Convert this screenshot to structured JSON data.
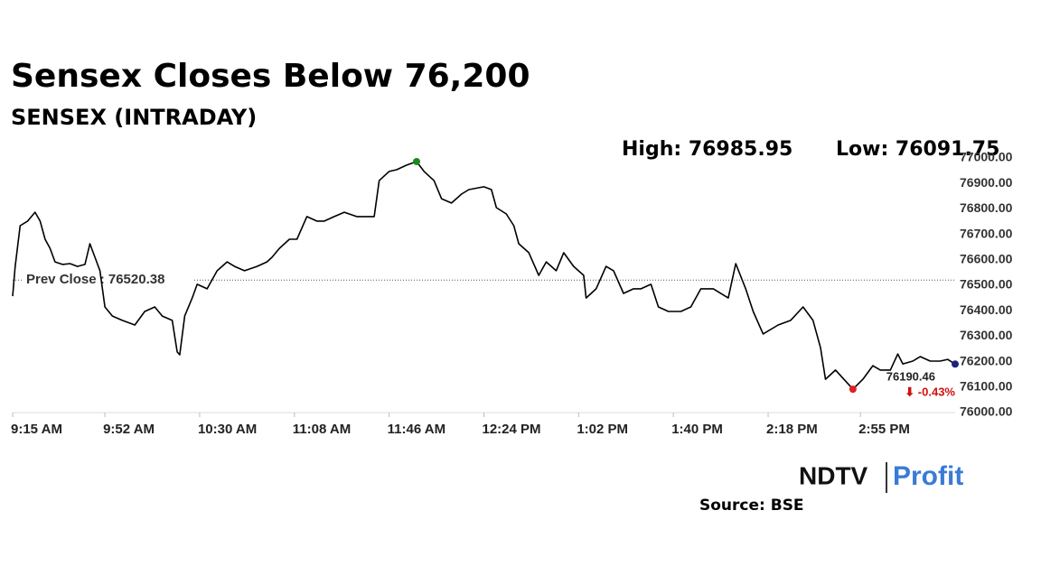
{
  "chart_data": {
    "type": "line",
    "title": "Sensex Closes Below 76,200",
    "subtitle": "SENSEX (INTRADAY)",
    "high_label": "High: 76985.95",
    "low_label": "Low: 76091.75",
    "reference_line": {
      "value": 76520.38,
      "label": "Prev Close : 76520.38"
    },
    "last_label": "76190.46",
    "change_label": "⬇ -0.43%",
    "source": "Source: BSE",
    "brand": [
      "NDTV",
      "Profit"
    ],
    "color": "#000000",
    "x": [
      0,
      1,
      3,
      6,
      9,
      11,
      13,
      15,
      17,
      20,
      23,
      26,
      29,
      31,
      33,
      35,
      37,
      40,
      44,
      49,
      53,
      57,
      60,
      64,
      66,
      67,
      69,
      72,
      74,
      78,
      82,
      86,
      89,
      93,
      98,
      102,
      104,
      107,
      111,
      114,
      118,
      122,
      125,
      129,
      133,
      138,
      142,
      145,
      147,
      151,
      154,
      158,
      162,
      165,
      169,
      172,
      176,
      180,
      183,
      189,
      192,
      194,
      198,
      201,
      203,
      207,
      211,
      214,
      218,
      221,
      225,
      229,
      230,
      234,
      238,
      241,
      245,
      249,
      252,
      256,
      259,
      263,
      268,
      272,
      276,
      281,
      287,
      290,
      294,
      297,
      301,
      307,
      312,
      317,
      321,
      324,
      326,
      330,
      337,
      341,
      345,
      348,
      352,
      355,
      357,
      361,
      364,
      368,
      372,
      375,
      378
    ],
    "values": [
      76457,
      76574,
      76734,
      76752,
      76787,
      76752,
      76681,
      76645,
      76592,
      76582,
      76585,
      76574,
      76582,
      76663,
      76610,
      76557,
      76415,
      76379,
      76362,
      76344,
      76397,
      76415,
      76379,
      76362,
      76238,
      76227,
      76379,
      76450,
      76504,
      76486,
      76557,
      76592,
      76574,
      76557,
      76574,
      76592,
      76610,
      76645,
      76681,
      76681,
      76770,
      76752,
      76752,
      76770,
      76787,
      76770,
      76770,
      76770,
      76911,
      76947,
      76954,
      76972,
      76985.95,
      76947,
      76911,
      76840,
      76823,
      76858,
      76876,
      76887,
      76876,
      76805,
      76780,
      76734,
      76663,
      76628,
      76539,
      76592,
      76557,
      76628,
      76574,
      76539,
      76450,
      76486,
      76574,
      76557,
      76468,
      76486,
      76486,
      76504,
      76415,
      76397,
      76397,
      76415,
      76486,
      76486,
      76450,
      76585,
      76486,
      76397,
      76309,
      76344,
      76362,
      76415,
      76362,
      76255,
      76131,
      76167,
      76091.75,
      76131,
      76184,
      76167,
      76167,
      76230,
      76191,
      76202,
      76220,
      76202,
      76202,
      76209,
      76190.46
    ],
    "xlim": [
      0,
      378
    ],
    "xticks": [
      {
        "value": 0,
        "label": "9:15 AM"
      },
      {
        "value": 37,
        "label": "9:52 AM"
      },
      {
        "value": 75,
        "label": "10:30 AM"
      },
      {
        "value": 113,
        "label": "11:08 AM"
      },
      {
        "value": 151,
        "label": "11:46 AM"
      },
      {
        "value": 189,
        "label": "12:24 PM"
      },
      {
        "value": 227,
        "label": "1:02 PM"
      },
      {
        "value": 265,
        "label": "1:40 PM"
      },
      {
        "value": 303,
        "label": "2:18 PM"
      },
      {
        "value": 340,
        "label": "2:55 PM"
      }
    ],
    "ylim": [
      76000,
      77000
    ],
    "yticks": [
      {
        "value": 76000,
        "label": "76000.00"
      },
      {
        "value": 76100,
        "label": "76100.00"
      },
      {
        "value": 76200,
        "label": "76200.00"
      },
      {
        "value": 76300,
        "label": "76300.00"
      },
      {
        "value": 76400,
        "label": "76400.00"
      },
      {
        "value": 76500,
        "label": "76500.00"
      },
      {
        "value": 76600,
        "label": "76600.00"
      },
      {
        "value": 76700,
        "label": "76700.00"
      },
      {
        "value": 76800,
        "label": "76800.00"
      },
      {
        "value": 76900,
        "label": "76900.00"
      },
      {
        "value": 77000,
        "label": "77000.00"
      }
    ]
  }
}
